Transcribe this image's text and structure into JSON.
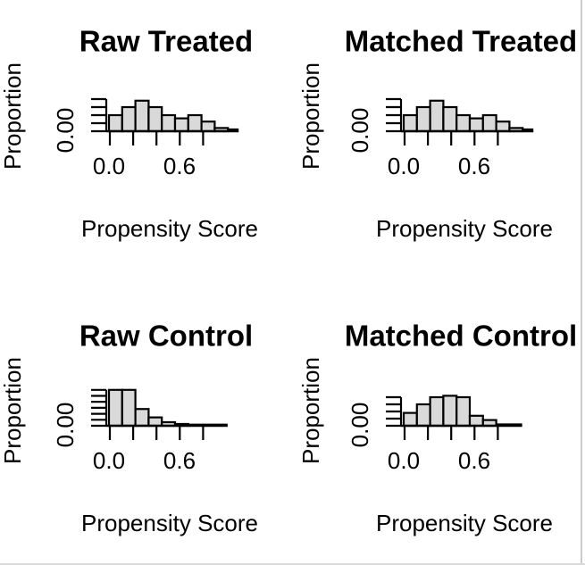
{
  "page": {
    "background": "#ffffff",
    "right_border_color": "#cccccc",
    "bottom_border_color": "#d9d9d9"
  },
  "chart_data": [
    {
      "type": "bar",
      "title": "Raw Treated",
      "xlabel": "Propensity Score",
      "ylabel": "Proportion",
      "y_tick_label_shown": "0.00",
      "x_tick_labels_shown": [
        "0.0",
        "0.6"
      ],
      "x_ticks": [
        0.0,
        0.2,
        0.4,
        0.6,
        0.8
      ],
      "y_ticks": [
        0.0,
        0.05,
        0.1,
        0.15,
        0.2
      ],
      "bin_start": 0.0,
      "bin_width": 0.11,
      "proportions": [
        0.1,
        0.15,
        0.19,
        0.15,
        0.1,
        0.08,
        0.1,
        0.06,
        0.02
      ],
      "tail_proportion": 0.01,
      "bar_fill": "#d9d9d9",
      "bar_stroke": "#000000"
    },
    {
      "type": "bar",
      "title": "Matched Treated",
      "xlabel": "Propensity Score",
      "ylabel": "Proportion",
      "y_tick_label_shown": "0.00",
      "x_tick_labels_shown": [
        "0.0",
        "0.6"
      ],
      "x_ticks": [
        0.0,
        0.2,
        0.4,
        0.6,
        0.8
      ],
      "y_ticks": [
        0.0,
        0.05,
        0.1,
        0.15,
        0.2
      ],
      "bin_start": 0.0,
      "bin_width": 0.11,
      "proportions": [
        0.1,
        0.15,
        0.19,
        0.15,
        0.1,
        0.08,
        0.1,
        0.06,
        0.02
      ],
      "tail_proportion": 0.01,
      "bar_fill": "#d9d9d9",
      "bar_stroke": "#000000"
    },
    {
      "type": "bar",
      "title": "Raw Control",
      "xlabel": "Propensity Score",
      "ylabel": "Proportion",
      "y_tick_label_shown": "0.00",
      "x_tick_labels_shown": [
        "0.0",
        "0.6"
      ],
      "x_ticks": [
        0.0,
        0.2,
        0.4,
        0.6,
        0.8
      ],
      "y_ticks": [
        0.0,
        0.05,
        0.1,
        0.15,
        0.2,
        0.25,
        0.3
      ],
      "bin_start": 0.0,
      "bin_width": 0.11,
      "proportions": [
        0.3,
        0.3,
        0.14,
        0.07,
        0.03,
        0.015
      ],
      "tail_proportion": 0.008,
      "bar_fill": "#d9d9d9",
      "bar_stroke": "#000000"
    },
    {
      "type": "bar",
      "title": "Matched Control",
      "xlabel": "Propensity Score",
      "ylabel": "Proportion",
      "y_tick_label_shown": "0.00",
      "x_tick_labels_shown": [
        "0.0",
        "0.6"
      ],
      "x_ticks": [
        0.0,
        0.2,
        0.4,
        0.6,
        0.8
      ],
      "y_ticks": [
        0.0,
        0.05,
        0.1,
        0.15,
        0.2
      ],
      "bin_start": 0.0,
      "bin_width": 0.11,
      "proportions": [
        0.09,
        0.15,
        0.2,
        0.21,
        0.2,
        0.07,
        0.04
      ],
      "tail_proportion": 0.008,
      "bar_fill": "#d9d9d9",
      "bar_stroke": "#000000"
    }
  ]
}
